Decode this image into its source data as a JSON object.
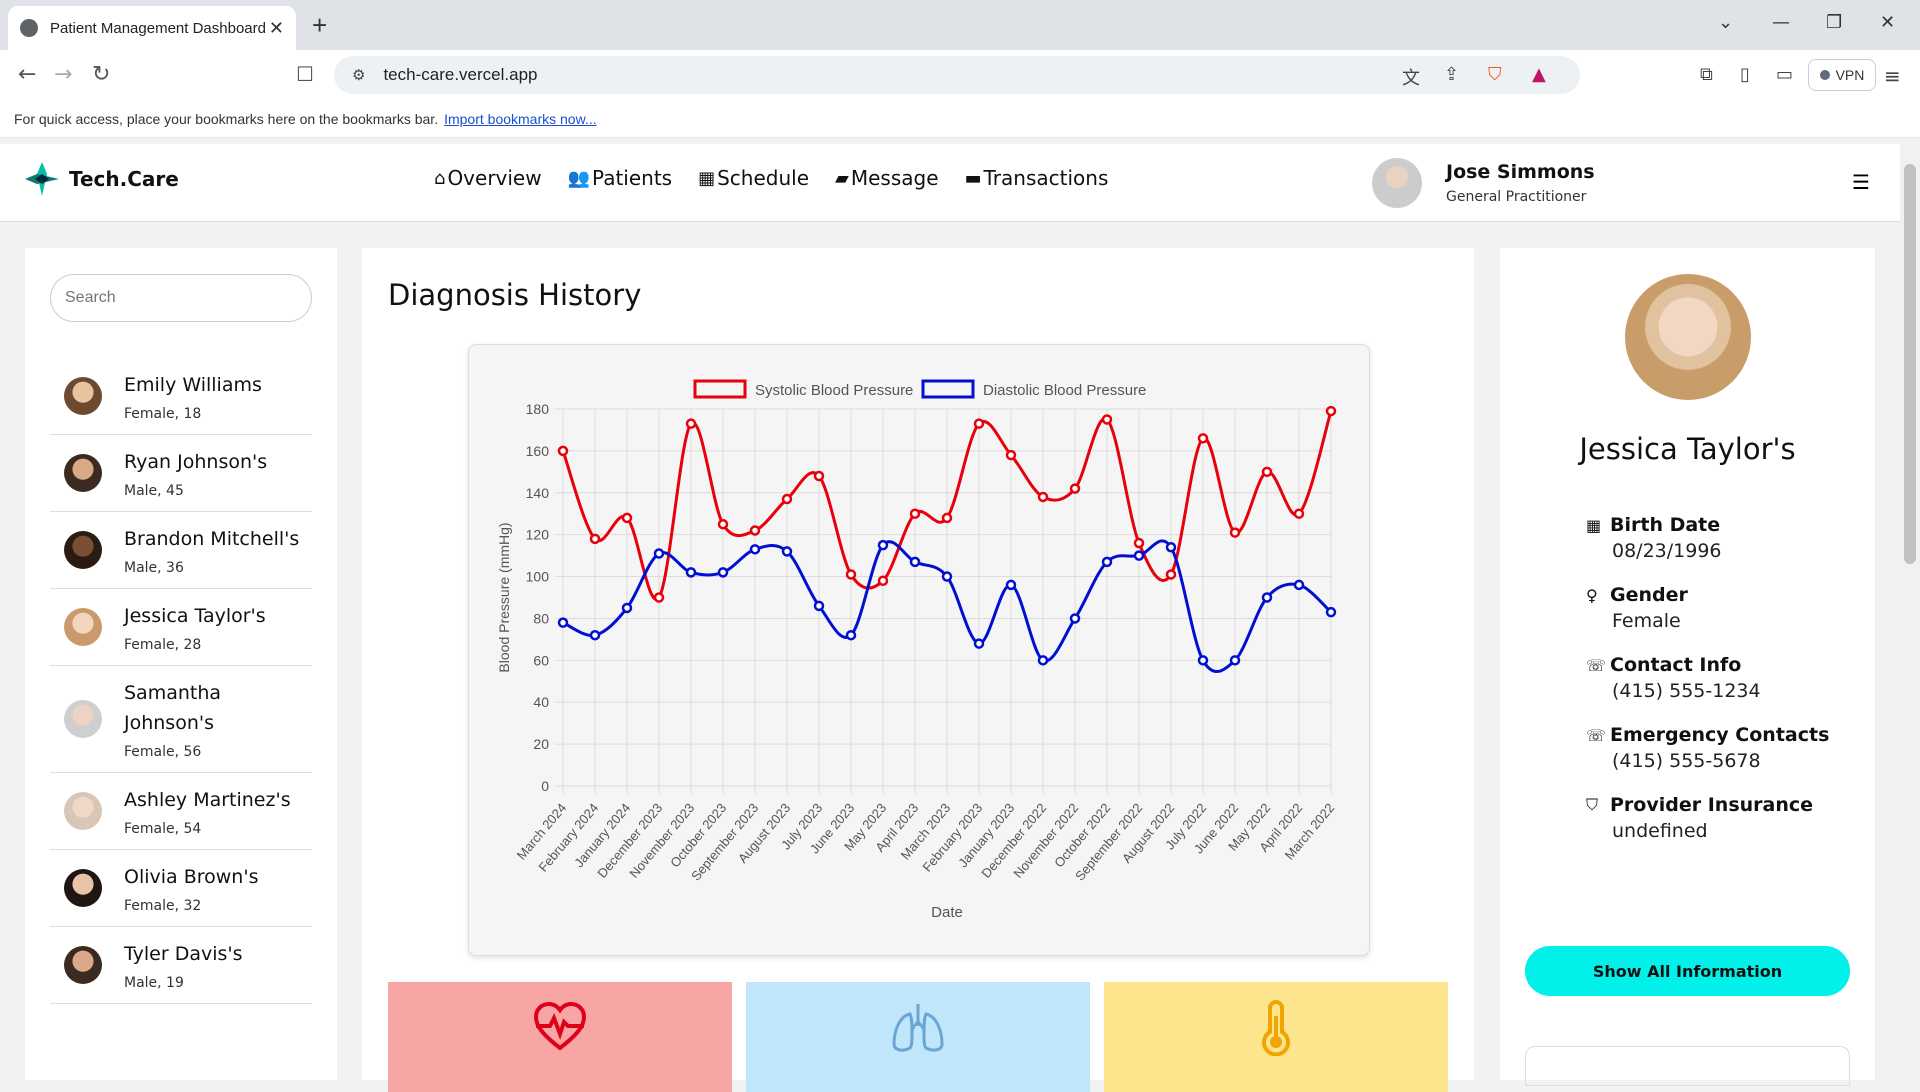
{
  "browser": {
    "tab_title": "Patient Management Dashboard",
    "url": "tech-care.vercel.app",
    "bookmarks_text": "For quick access, place your bookmarks here on the bookmarks bar.",
    "bookmarks_link": "Import bookmarks now...",
    "vpn_label": "VPN"
  },
  "app": {
    "brand": "Tech.Care",
    "nav": [
      {
        "label": "Overview",
        "icon": "home-icon"
      },
      {
        "label": "Patients",
        "icon": "patients-icon"
      },
      {
        "label": "Schedule",
        "icon": "calendar-icon"
      },
      {
        "label": "Message",
        "icon": "message-icon"
      },
      {
        "label": "Transactions",
        "icon": "card-icon"
      }
    ],
    "doctor": {
      "name": "Jose Simmons",
      "role": "General Practitioner"
    }
  },
  "search": {
    "placeholder": "Search"
  },
  "patients": [
    {
      "name": "Emily Williams",
      "meta": "Female, 18"
    },
    {
      "name": "Ryan Johnson's",
      "meta": "Male, 45"
    },
    {
      "name": "Brandon Mitchell's",
      "meta": "Male, 36"
    },
    {
      "name": "Jessica Taylor's",
      "meta": "Female, 28"
    },
    {
      "name": "Samantha Johnson's",
      "meta": "Female, 56"
    },
    {
      "name": "Ashley Martinez's",
      "meta": "Female, 54"
    },
    {
      "name": "Olivia Brown's",
      "meta": "Female, 32"
    },
    {
      "name": "Tyler Davis's",
      "meta": "Male, 19"
    }
  ],
  "diagnosis": {
    "title": "Diagnosis History"
  },
  "chart_data": {
    "type": "line",
    "categories": [
      "March 2024",
      "February 2024",
      "January 2024",
      "December 2023",
      "November 2023",
      "October 2023",
      "September 2023",
      "August 2023",
      "July 2023",
      "June 2023",
      "May 2023",
      "April 2023",
      "March 2023",
      "February 2023",
      "January 2023",
      "December 2022",
      "November 2022",
      "October 2022",
      "September 2022",
      "August 2022",
      "July 2022",
      "June 2022",
      "May 2022",
      "April 2022",
      "March 2022"
    ],
    "series": [
      {
        "name": "Systolic Blood Pressure",
        "color": "#e8000b",
        "values": [
          160,
          118,
          128,
          90,
          173,
          125,
          122,
          137,
          148,
          101,
          98,
          130,
          128,
          173,
          158,
          138,
          142,
          175,
          116,
          101,
          166,
          121,
          150,
          130,
          179
        ]
      },
      {
        "name": "Diastolic Blood Pressure",
        "color": "#0010d0",
        "values": [
          78,
          72,
          85,
          111,
          102,
          102,
          113,
          112,
          86,
          72,
          115,
          107,
          100,
          68,
          96,
          60,
          80,
          107,
          110,
          114,
          60,
          60,
          90,
          96,
          83
        ]
      }
    ],
    "xlabel": "Date",
    "ylabel": "Blood Pressure (mmHg)",
    "ylim": [
      0,
      180
    ],
    "yticks": [
      0,
      20,
      40,
      60,
      80,
      100,
      120,
      140,
      160,
      180
    ],
    "legend": "top",
    "grid": true
  },
  "vitals": [
    {
      "icon": "heart-rate-icon",
      "bg": "#f7a5a5",
      "color": "#e0001b"
    },
    {
      "icon": "lungs-icon",
      "bg": "#bfe6fa",
      "color": "#6aa6d1"
    },
    {
      "icon": "thermometer-icon",
      "bg": "#fde58d",
      "color": "#f0a500"
    }
  ],
  "profile": {
    "name": "Jessica Taylor's",
    "fields": [
      {
        "label": "Birth Date",
        "value": "08/23/1996",
        "icon": "calendar-icon"
      },
      {
        "label": "Gender",
        "value": "Female",
        "icon": "female-icon"
      },
      {
        "label": "Contact Info",
        "value": "(415) 555-1234",
        "icon": "phone-icon"
      },
      {
        "label": "Emergency Contacts",
        "value": "(415) 555-5678",
        "icon": "phone-icon"
      },
      {
        "label": "Provider Insurance",
        "value": "undefined",
        "icon": "shield-icon"
      }
    ],
    "button": "Show All Information"
  }
}
